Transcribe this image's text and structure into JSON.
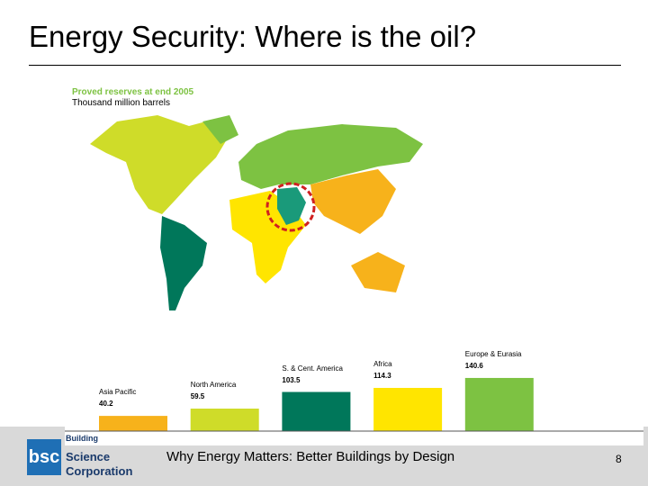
{
  "slide": {
    "title": "Energy Security: Where is the oil?",
    "footer": "Why Energy Matters: Better Buildings by Design",
    "page_number": "8"
  },
  "logo": {
    "text": "bsc",
    "line1": "Building",
    "line2": "Science",
    "line3": "Corporation"
  },
  "chart_data": {
    "type": "bar",
    "title": "Proved reserves at end 2005",
    "subtitle": "Thousand million barrels",
    "categories": [
      "Asia Pacific",
      "North America",
      "S. & Cent. America",
      "Africa",
      "Europe & Eurasia"
    ],
    "values": [
      40.2,
      59.5,
      103.5,
      114.3,
      140.6
    ],
    "value_labels": [
      "40.2",
      "59.5",
      "103.5",
      "114.3",
      "140.6"
    ],
    "colors": [
      "#f7b21b",
      "#cfdc29",
      "#00775a",
      "#ffe500",
      "#7dc242"
    ],
    "ylim": [
      0,
      150
    ],
    "grid": false,
    "annotation": "Middle East highlighted with red dashed circle on map",
    "middle_east_color": "#1a9a7a",
    "highlight_color": "#d02020"
  }
}
